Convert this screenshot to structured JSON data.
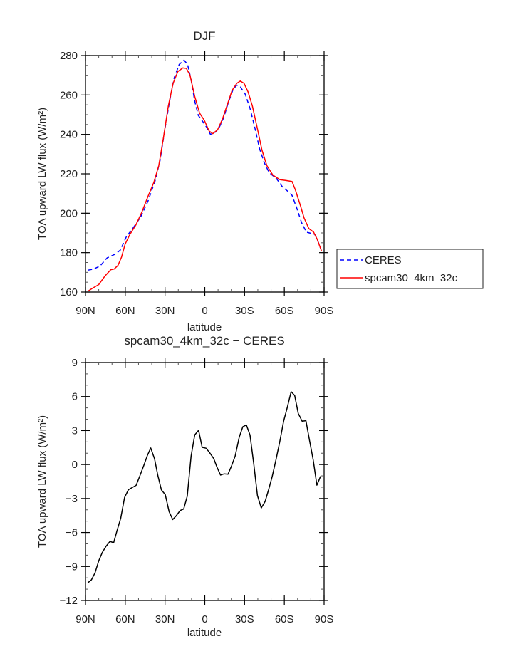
{
  "chart_data": [
    {
      "type": "line",
      "title": "DJF",
      "xlabel": "latitude",
      "ylabel": "TOA upward LW flux (W/m²)",
      "xlim": [
        90,
        -90
      ],
      "ylim": [
        160,
        280
      ],
      "xticks": [
        90,
        60,
        30,
        0,
        -30,
        -60,
        -90
      ],
      "xtick_labels": [
        "90N",
        "60N",
        "30N",
        "0",
        "30S",
        "60S",
        "90S"
      ],
      "yticks": [
        160,
        180,
        200,
        220,
        240,
        260,
        280
      ],
      "ytick_labels": [
        "160",
        "180",
        "200",
        "220",
        "240",
        "260",
        "280"
      ],
      "legend_placement": "outside-right",
      "series": [
        {
          "name": "CERES",
          "color": "#0000ff",
          "style": "dashed",
          "x": [
            88.2,
            83.7,
            79.1,
            73.7,
            67.4,
            63.7,
            59.2,
            53.8,
            48.3,
            42.9,
            37.5,
            33.8,
            30.2,
            26.6,
            23.0,
            19.3,
            15.7,
            13.0,
            10.3,
            7.6,
            4.9,
            2.1,
            -1.5,
            -4.2,
            -6.9,
            -10.5,
            -14.2,
            -17.8,
            -21.4,
            -24.1,
            -26.8,
            -30.5,
            -34.1,
            -37.7,
            -41.3,
            -45.0,
            -48.6,
            -54.0,
            -58.6,
            -63.1,
            -65.8,
            -69.4,
            -73.0,
            -76.7,
            -80.3,
            -83.0,
            -84.8,
            -87.5
          ],
          "y": [
            171.1,
            171.7,
            173.2,
            177.3,
            179.3,
            181.3,
            188.0,
            192.8,
            198.2,
            206.1,
            216.4,
            226.6,
            242.3,
            256.8,
            268.9,
            275.5,
            277.7,
            275.5,
            267.7,
            256.8,
            249.6,
            247.1,
            243.5,
            240.1,
            240.5,
            242.9,
            248.4,
            256.2,
            262.9,
            265.0,
            264.1,
            260.4,
            253.2,
            243.5,
            232.7,
            225.4,
            220.6,
            217.6,
            213.3,
            210.9,
            209.1,
            202.5,
            195.2,
            190.4,
            189.8,
            189.2,
            186.8,
            181.9
          ]
        },
        {
          "name": "spcam30_4km_32c",
          "color": "#ff0000",
          "style": "solid",
          "x": [
            88.2,
            84.6,
            80.0,
            75.5,
            71.0,
            68.3,
            65.5,
            62.8,
            60.1,
            56.5,
            52.0,
            47.4,
            42.9,
            38.4,
            34.7,
            31.1,
            27.5,
            23.9,
            20.3,
            16.6,
            13.9,
            11.2,
            7.6,
            3.9,
            0.3,
            -3.3,
            -6.0,
            -9.6,
            -13.3,
            -16.9,
            -20.5,
            -24.1,
            -26.8,
            -29.6,
            -32.6,
            -35.9,
            -39.5,
            -43.1,
            -46.8,
            -51.3,
            -56.7,
            -61.3,
            -65.8,
            -68.5,
            -72.2,
            -74.9,
            -78.5,
            -82.1,
            -84.8,
            -88.1
          ],
          "y": [
            160.4,
            162.0,
            163.8,
            168.0,
            171.3,
            171.7,
            173.5,
            177.7,
            184.3,
            189.2,
            194.0,
            200.7,
            208.5,
            215.7,
            224.2,
            238.6,
            254.4,
            265.9,
            271.9,
            273.7,
            273.5,
            270.1,
            259.2,
            250.8,
            247.1,
            241.7,
            240.4,
            242.3,
            247.8,
            255.0,
            262.2,
            265.9,
            267.1,
            265.9,
            261.6,
            254.4,
            243.5,
            232.1,
            224.2,
            219.4,
            217.0,
            216.6,
            216.1,
            211.5,
            203.7,
            197.6,
            192.2,
            190.4,
            186.8,
            180.7
          ]
        }
      ]
    },
    {
      "type": "line",
      "title": "spcam30_4km_32c − CERES",
      "xlabel": "latitude",
      "ylabel": "TOA upward LW flux (W/m²)",
      "xlim": [
        90,
        -90
      ],
      "ylim": [
        -12,
        9
      ],
      "xticks": [
        90,
        60,
        30,
        0,
        -30,
        -60,
        -90
      ],
      "xtick_labels": [
        "90N",
        "60N",
        "30N",
        "0",
        "30S",
        "60S",
        "90S"
      ],
      "yticks": [
        -12,
        -9,
        -6,
        -3,
        0,
        3,
        6,
        9
      ],
      "ytick_labels": [
        "−12",
        "−9",
        "−6",
        "−3",
        "0",
        "3",
        "6",
        "9"
      ],
      "series": [
        {
          "name": "spcam30_4km_32c - CERES",
          "color": "#000000",
          "style": "solid",
          "x": [
            88.2,
            85.5,
            82.8,
            80.0,
            77.3,
            74.6,
            71.5,
            68.8,
            66.1,
            63.4,
            60.5,
            57.6,
            54.7,
            51.8,
            48.9,
            46.0,
            43.3,
            40.8,
            37.9,
            35.4,
            32.7,
            29.8,
            26.9,
            24.2,
            21.5,
            18.6,
            15.9,
            13.2,
            10.3,
            7.6,
            4.7,
            2.0,
            -0.9,
            -3.6,
            -6.7,
            -9.2,
            -11.9,
            -14.6,
            -17.5,
            -20.2,
            -22.9,
            -26.0,
            -28.7,
            -31.4,
            -34.1,
            -37.0,
            -39.7,
            -42.6,
            -45.5,
            -48.2,
            -50.9,
            -53.6,
            -56.6,
            -59.5,
            -62.2,
            -65.1,
            -67.8,
            -70.5,
            -73.4,
            -76.3,
            -79.0,
            -81.7,
            -84.6,
            -87.3
          ],
          "y": [
            -10.44,
            -10.17,
            -9.56,
            -8.5,
            -7.76,
            -7.23,
            -6.79,
            -6.91,
            -5.79,
            -4.74,
            -2.9,
            -2.22,
            -2.03,
            -1.84,
            -0.97,
            -0.08,
            0.8,
            1.46,
            0.49,
            -0.97,
            -2.24,
            -2.66,
            -4.16,
            -4.86,
            -4.52,
            -4.06,
            -3.93,
            -2.79,
            0.76,
            2.62,
            3.02,
            1.52,
            1.44,
            1.06,
            0.53,
            -0.23,
            -0.93,
            -0.82,
            -0.85,
            -0.11,
            0.74,
            2.43,
            3.34,
            3.49,
            2.6,
            -0.02,
            -2.73,
            -3.83,
            -3.26,
            -2.2,
            -1.04,
            0.38,
            2.03,
            3.83,
            5.03,
            6.43,
            6.09,
            4.52,
            3.83,
            3.87,
            2.14,
            0.44,
            -1.82,
            -1.04
          ]
        }
      ]
    }
  ]
}
